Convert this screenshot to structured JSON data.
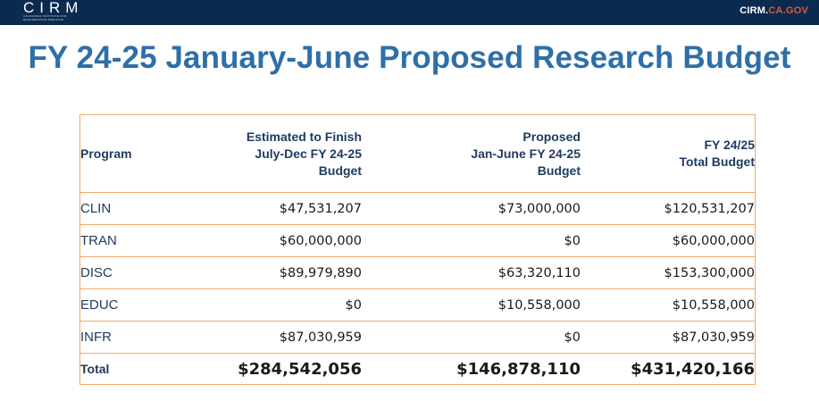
{
  "header": {
    "logo_text": "CIRM",
    "logo_subtitle": "California Institute for Regenerative Medicine",
    "site_link_prefix": "CIRM.",
    "site_link_accent": "CA.GOV",
    "bar_color": "#0b2a4f",
    "accent_color": "#e05a3a"
  },
  "title": "FY 24-25 January-June Proposed Research Budget",
  "table": {
    "headers": {
      "program": "Program",
      "estimated_line1": "Estimated to Finish",
      "estimated_line2": "July-Dec FY 24-25",
      "estimated_line3": "Budget",
      "proposed_line1": "Proposed",
      "proposed_line2": "Jan-June FY 24-25",
      "proposed_line3": "Budget",
      "total_line1": "FY 24/25",
      "total_line2": "Total Budget"
    },
    "rows": [
      {
        "program": "CLIN",
        "estimated": "$47,531,207",
        "proposed": "$73,000,000",
        "total": "$120,531,207"
      },
      {
        "program": "TRAN",
        "estimated": "$60,000,000",
        "proposed": "$0",
        "total": "$60,000,000"
      },
      {
        "program": "DISC",
        "estimated": "$89,979,890",
        "proposed": "$63,320,110",
        "total": "$153,300,000"
      },
      {
        "program": "EDUC",
        "estimated": "$0",
        "proposed": "$10,558,000",
        "total": "$10,558,000"
      },
      {
        "program": "INFR",
        "estimated": "$87,030,959",
        "proposed": "$0",
        "total": "$87,030,959"
      }
    ],
    "total_row": {
      "program": "Total",
      "estimated": "$284,542,056",
      "proposed": "$146,878,110",
      "total": "$431,420,166"
    },
    "border_color": "#f2a968"
  }
}
